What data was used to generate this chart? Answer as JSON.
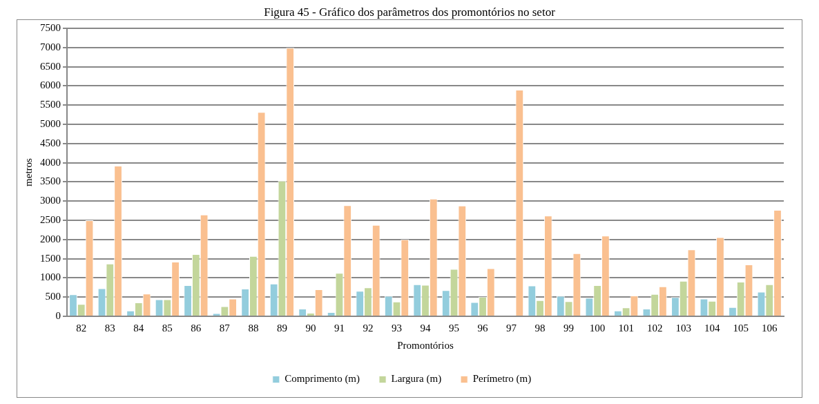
{
  "chart_data": {
    "type": "bar",
    "title": "Figura 45 - Gráfico dos parâmetros dos promontórios no setor",
    "xlabel": "Promontórios",
    "ylabel": "metros",
    "categories": [
      "82",
      "83",
      "84",
      "85",
      "86",
      "87",
      "88",
      "89",
      "90",
      "91",
      "92",
      "93",
      "94",
      "95",
      "96",
      "97",
      "98",
      "99",
      "100",
      "101",
      "102",
      "103",
      "104",
      "105",
      "106"
    ],
    "series": [
      {
        "name": "Comprimento (m)",
        "color": "#93cddd",
        "values": [
          570,
          730,
          150,
          440,
          810,
          80,
          720,
          850,
          200,
          110,
          660,
          530,
          830,
          680,
          370,
          0,
          800,
          530,
          480,
          150,
          200,
          500,
          460,
          240,
          640
        ]
      },
      {
        "name": "Largura (m)",
        "color": "#c3d69b",
        "values": [
          320,
          1370,
          360,
          440,
          1620,
          260,
          1570,
          3530,
          90,
          1130,
          750,
          380,
          820,
          1230,
          510,
          0,
          420,
          390,
          810,
          230,
          580,
          920,
          400,
          900,
          830
        ]
      },
      {
        "name": "Perímetro (m)",
        "color": "#fac090",
        "values": [
          2500,
          3920,
          590,
          1420,
          2650,
          460,
          5320,
          6990,
          700,
          2890,
          2380,
          2000,
          3060,
          2880,
          1250,
          5900,
          2620,
          1640,
          2100,
          540,
          780,
          1740,
          2060,
          1350,
          2770
        ]
      }
    ],
    "ylim": [
      0,
      7500
    ],
    "yticks": [
      0,
      500,
      1000,
      1500,
      2000,
      2500,
      3000,
      3500,
      4000,
      4500,
      5000,
      5500,
      6000,
      6500,
      7000,
      7500
    ],
    "grid": "y",
    "legend": "bottom"
  }
}
